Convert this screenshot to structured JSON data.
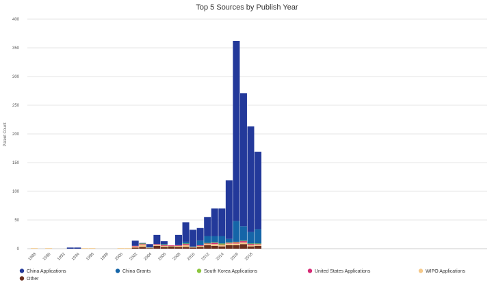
{
  "chart_data": {
    "type": "bar",
    "stacked": true,
    "title": "Top 5 Sources by Publish Year",
    "ylabel": "Patent Count",
    "xlabel": "",
    "ylim": [
      0,
      400
    ],
    "y_ticks": [
      0,
      50,
      100,
      150,
      200,
      250,
      300,
      350,
      400
    ],
    "grid": true,
    "legend_position": "bottom-left",
    "x_years": [
      1988,
      1989,
      1990,
      1991,
      1992,
      1993,
      1994,
      1995,
      1996,
      1997,
      1998,
      1999,
      2000,
      2001,
      2002,
      2003,
      2004,
      2005,
      2006,
      2007,
      2008,
      2009,
      2010,
      2011,
      2012,
      2013,
      2014,
      2015,
      2016,
      2017,
      2018,
      2019
    ],
    "x_tick_labels": [
      "1988",
      "1990",
      "1992",
      "1994",
      "1996",
      "1998",
      "2000",
      "2002",
      "2004",
      "2006",
      "2008",
      "2010",
      "2012",
      "2014",
      "2016",
      "2018"
    ],
    "series": [
      {
        "name": "Other",
        "color": "#6b2f1f",
        "values": [
          0,
          0,
          0,
          0,
          0,
          0,
          0,
          0,
          0,
          0,
          0,
          0,
          0,
          0,
          2,
          3,
          1,
          5,
          3,
          4,
          3,
          3,
          2,
          3,
          6,
          5,
          4,
          6,
          6,
          8,
          4,
          5
        ]
      },
      {
        "name": "WIPO Applications",
        "color": "#f5c98a",
        "values": [
          1,
          0,
          1,
          0,
          0,
          0,
          0,
          1,
          1,
          0,
          0,
          0,
          1,
          1,
          2,
          4,
          1,
          2,
          2,
          1,
          2,
          3,
          1,
          2,
          2,
          3,
          2,
          3,
          3,
          3,
          2,
          2
        ]
      },
      {
        "name": "United States Applications",
        "color": "#d62a75",
        "values": [
          0,
          0,
          0,
          0,
          0,
          0,
          0,
          0,
          0,
          0,
          0,
          0,
          0,
          0,
          1,
          1,
          0,
          1,
          1,
          1,
          1,
          2,
          0,
          1,
          1,
          2,
          1,
          1,
          2,
          2,
          2,
          1
        ]
      },
      {
        "name": "South Korea Applications",
        "color": "#8cc63f",
        "values": [
          0,
          0,
          0,
          0,
          0,
          0,
          0,
          0,
          0,
          0,
          0,
          0,
          0,
          0,
          0,
          1,
          0,
          0,
          1,
          0,
          0,
          1,
          0,
          0,
          1,
          1,
          2,
          1,
          1,
          1,
          1,
          1
        ]
      },
      {
        "name": "China Grants",
        "color": "#1565a8",
        "values": [
          0,
          0,
          0,
          0,
          0,
          0,
          0,
          0,
          0,
          0,
          0,
          0,
          0,
          0,
          0,
          0,
          1,
          0,
          1,
          0,
          1,
          3,
          1,
          8,
          12,
          11,
          13,
          6,
          36,
          25,
          20,
          25
        ]
      },
      {
        "name": "China Applications",
        "color": "#23399a",
        "values": [
          0,
          0,
          0,
          0,
          0,
          2,
          2,
          0,
          0,
          0,
          0,
          0,
          0,
          0,
          9,
          1,
          5,
          16,
          5,
          0,
          17,
          34,
          29,
          22,
          33,
          48,
          48,
          102,
          314,
          232,
          184,
          135
        ]
      }
    ],
    "legend_order": [
      "China Applications",
      "China Grants",
      "South Korea Applications",
      "United States Applications",
      "WIPO Applications",
      "Other"
    ]
  }
}
